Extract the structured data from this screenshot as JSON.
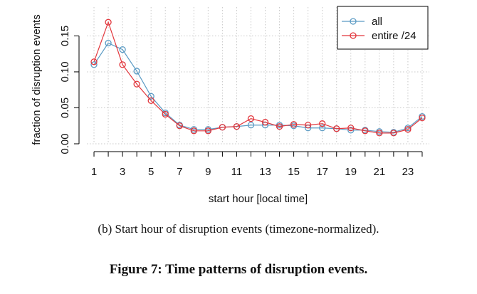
{
  "chart_data": {
    "type": "line",
    "x": [
      1,
      2,
      3,
      4,
      5,
      6,
      7,
      8,
      9,
      10,
      11,
      12,
      13,
      14,
      15,
      16,
      17,
      18,
      19,
      20,
      21,
      22,
      23,
      24
    ],
    "xticks": [
      1,
      3,
      5,
      7,
      9,
      11,
      13,
      15,
      17,
      19,
      21,
      23
    ],
    "yticks": [
      0.0,
      0.05,
      0.1,
      0.15
    ],
    "ytick_labels": [
      "0.00",
      "0.05",
      "0.10",
      "0.15"
    ],
    "xlabel": "start hour [local time]",
    "ylabel": "fraction of disruption events",
    "xlim": [
      0.5,
      24.5
    ],
    "ylim": [
      0,
      0.19
    ],
    "grid": true,
    "legend_position": "top-right",
    "series": [
      {
        "name": "all",
        "color": "#5b9bc4",
        "values": [
          0.11,
          0.14,
          0.131,
          0.101,
          0.066,
          0.043,
          0.026,
          0.02,
          0.02,
          0.023,
          0.024,
          0.026,
          0.026,
          0.026,
          0.025,
          0.022,
          0.022,
          0.021,
          0.019,
          0.019,
          0.017,
          0.016,
          0.022,
          0.038
        ]
      },
      {
        "name": "entire /24",
        "color": "#e2363c",
        "values": [
          0.114,
          0.169,
          0.11,
          0.083,
          0.06,
          0.041,
          0.025,
          0.018,
          0.018,
          0.023,
          0.024,
          0.035,
          0.03,
          0.024,
          0.027,
          0.026,
          0.028,
          0.021,
          0.022,
          0.018,
          0.015,
          0.015,
          0.02,
          0.036
        ]
      }
    ]
  },
  "captions": {
    "subfigure": "(b) Start hour of disruption events (timezone-normalized).",
    "figure": "Figure 7: Time patterns of disruption events."
  }
}
